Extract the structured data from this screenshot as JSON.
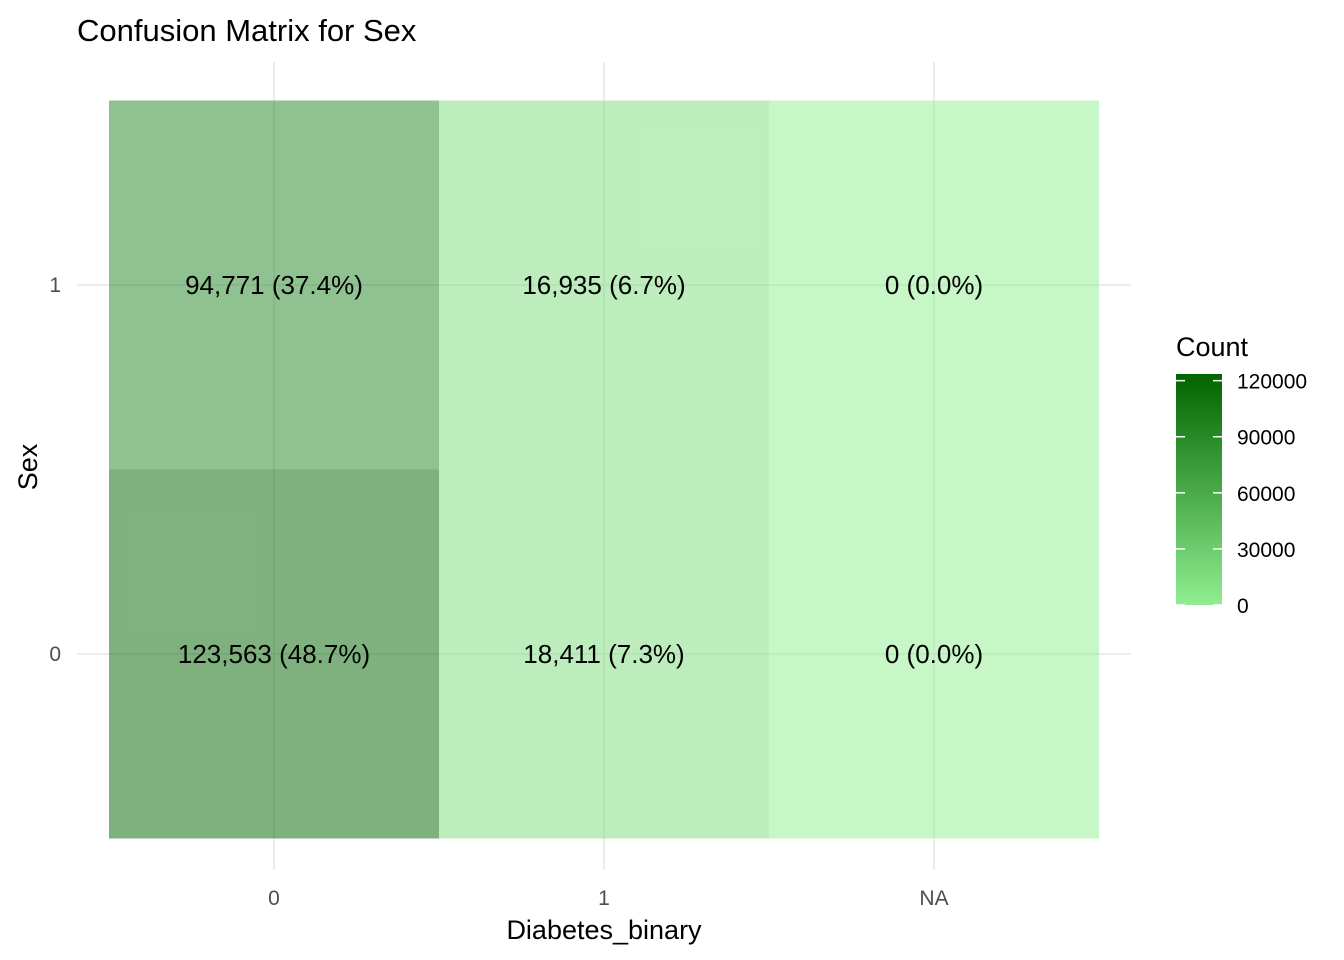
{
  "chart_data": {
    "type": "heatmap",
    "title": "Confusion Matrix for Sex",
    "xlabel": "Diabetes_binary",
    "ylabel": "Sex",
    "x_categories": [
      "0",
      "1",
      "NA"
    ],
    "y_categories": [
      "0",
      "1"
    ],
    "cells": [
      {
        "x": "0",
        "y": "1",
        "value": 94771,
        "label": "94,771 (37.4%)"
      },
      {
        "x": "1",
        "y": "1",
        "value": 16935,
        "label": "16,935 (6.7%)"
      },
      {
        "x": "NA",
        "y": "1",
        "value": 0,
        "label": "0 (0.0%)"
      },
      {
        "x": "0",
        "y": "0",
        "value": 123563,
        "label": "123,563 (48.7%)"
      },
      {
        "x": "1",
        "y": "0",
        "value": 18411,
        "label": "18,411 (7.3%)"
      },
      {
        "x": "NA",
        "y": "0",
        "value": 0,
        "label": "0 (0.0%)"
      }
    ],
    "legend": {
      "title": "Count",
      "ticks": [
        0,
        30000,
        60000,
        90000,
        120000
      ],
      "labels": [
        "0",
        "30000",
        "60000",
        "90000",
        "120000"
      ],
      "range": [
        0,
        123563
      ],
      "low_color": "#90ee90",
      "high_color": "#006400",
      "position": "right"
    },
    "tile_alpha": 0.5,
    "grid": true
  }
}
